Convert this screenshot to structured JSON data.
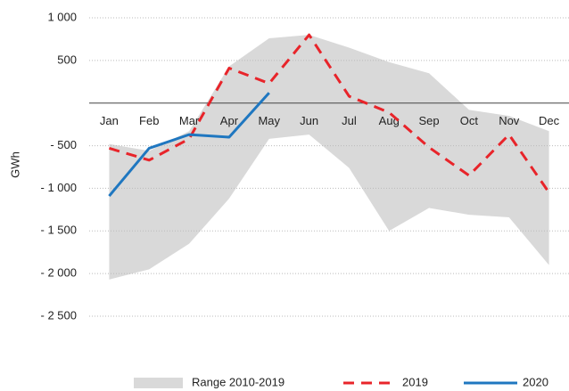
{
  "chart_data": {
    "type": "line",
    "y_label": "GWh",
    "categories": [
      "Jan",
      "Feb",
      "Mar",
      "Apr",
      "May",
      "Jun",
      "Jul",
      "Aug",
      "Sep",
      "Oct",
      "Nov",
      "Dec"
    ],
    "ylim": [
      -2500,
      1000
    ],
    "yticks": [
      {
        "value": 1000,
        "label": "1 000"
      },
      500,
      {
        "value": -500,
        "label": "- 500"
      },
      {
        "value": -1000,
        "label": "- 1 000"
      },
      {
        "value": -1500,
        "label": "- 1 500"
      },
      {
        "value": -2000,
        "label": "- 2 000"
      },
      {
        "value": -2500,
        "label": "- 2 500"
      }
    ],
    "grid": true,
    "legend": "bottom",
    "range": {
      "name": "Range 2010-2019",
      "color": "#d9d9d9",
      "values": [
        -480,
        -560,
        -330,
        430,
        760,
        800,
        650,
        480,
        350,
        -80,
        -150,
        -330
      ],
      "lower": [
        -2070,
        -1950,
        -1650,
        -1120,
        -420,
        -370,
        -760,
        -1500,
        -1230,
        -1310,
        -1340,
        -1900
      ]
    },
    "series": [
      {
        "name": "2019",
        "color": "#e8242a",
        "dashed": true,
        "values": [
          -530,
          -670,
          -420,
          410,
          230,
          800,
          80,
          -110,
          -520,
          -850,
          -370,
          -1050
        ]
      },
      {
        "name": "2020",
        "color": "#1f77c0",
        "dashed": false,
        "values": [
          -1090,
          -530,
          -370,
          -400,
          120,
          null,
          null,
          null,
          null,
          null,
          null,
          null
        ]
      }
    ]
  }
}
